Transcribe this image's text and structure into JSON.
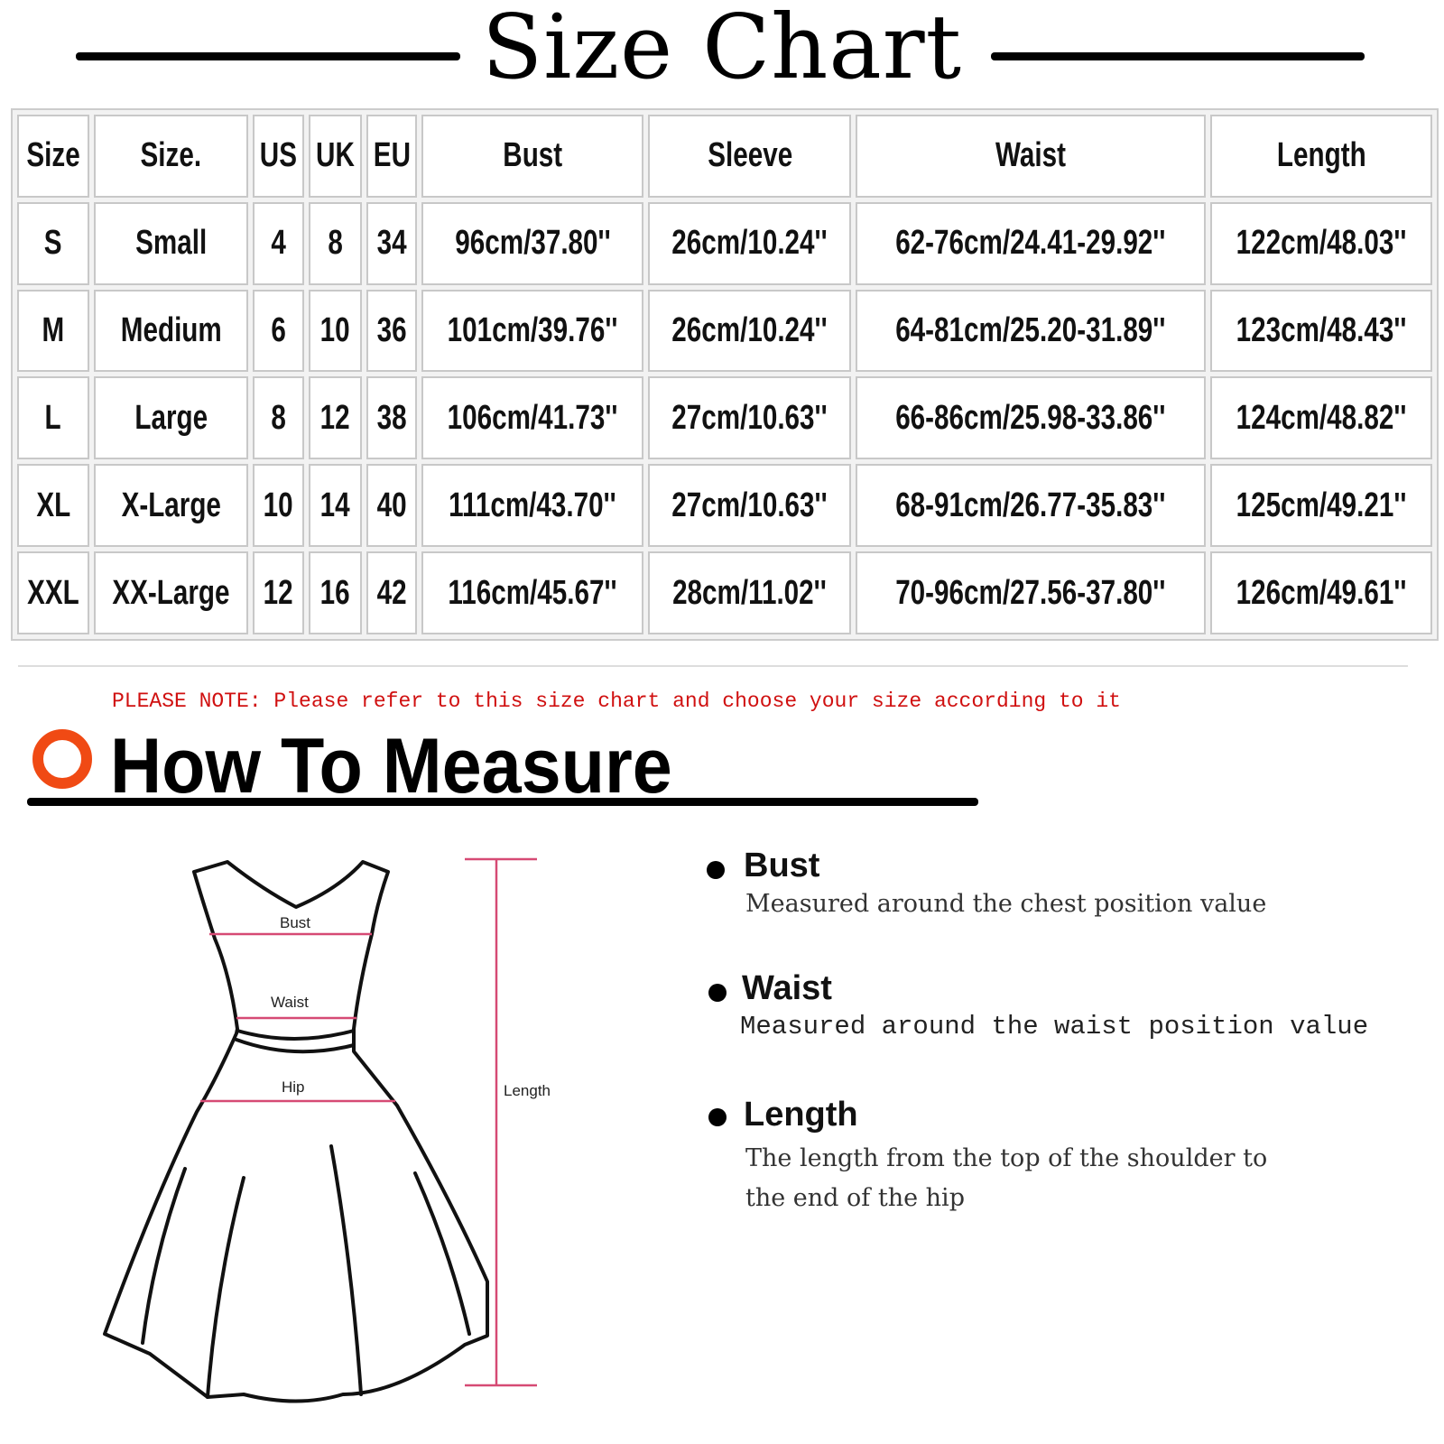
{
  "title": "Size Chart",
  "table": {
    "headers": [
      "Size",
      "Size.",
      "US",
      "UK",
      "EU",
      "Bust",
      "Sleeve",
      "Waist",
      "Length"
    ],
    "rows": [
      [
        "S",
        "Small",
        "4",
        "8",
        "34",
        "96cm/37.80''",
        "26cm/10.24''",
        "62-76cm/24.41-29.92''",
        "122cm/48.03''"
      ],
      [
        "M",
        "Medium",
        "6",
        "10",
        "36",
        "101cm/39.76''",
        "26cm/10.24''",
        "64-81cm/25.20-31.89''",
        "123cm/48.43''"
      ],
      [
        "L",
        "Large",
        "8",
        "12",
        "38",
        "106cm/41.73''",
        "27cm/10.63''",
        "66-86cm/25.98-33.86''",
        "124cm/48.82''"
      ],
      [
        "XL",
        "X-Large",
        "10",
        "14",
        "40",
        "111cm/43.70''",
        "27cm/10.63''",
        "68-91cm/26.77-35.83''",
        "125cm/49.21''"
      ],
      [
        "XXL",
        "XX-Large",
        "12",
        "16",
        "42",
        "116cm/45.67''",
        "28cm/11.02''",
        "70-96cm/27.56-37.80''",
        "126cm/49.61''"
      ]
    ]
  },
  "note": "PLEASE NOTE: Please refer to this size chart and choose your size according to it",
  "how_to_measure": {
    "heading": "How To Measure",
    "accent_color": "#f04a14",
    "diagram_labels": {
      "bust": "Bust",
      "waist": "Waist",
      "hip": "Hip",
      "length": "Length"
    },
    "items": [
      {
        "title": "Bust",
        "desc": "Measured around the chest position value"
      },
      {
        "title": "Waist",
        "desc": "Measured around the waist position value"
      },
      {
        "title": "Length",
        "desc_lines": [
          "The length from the top of the shoulder to",
          "the end of the hip"
        ]
      }
    ]
  }
}
